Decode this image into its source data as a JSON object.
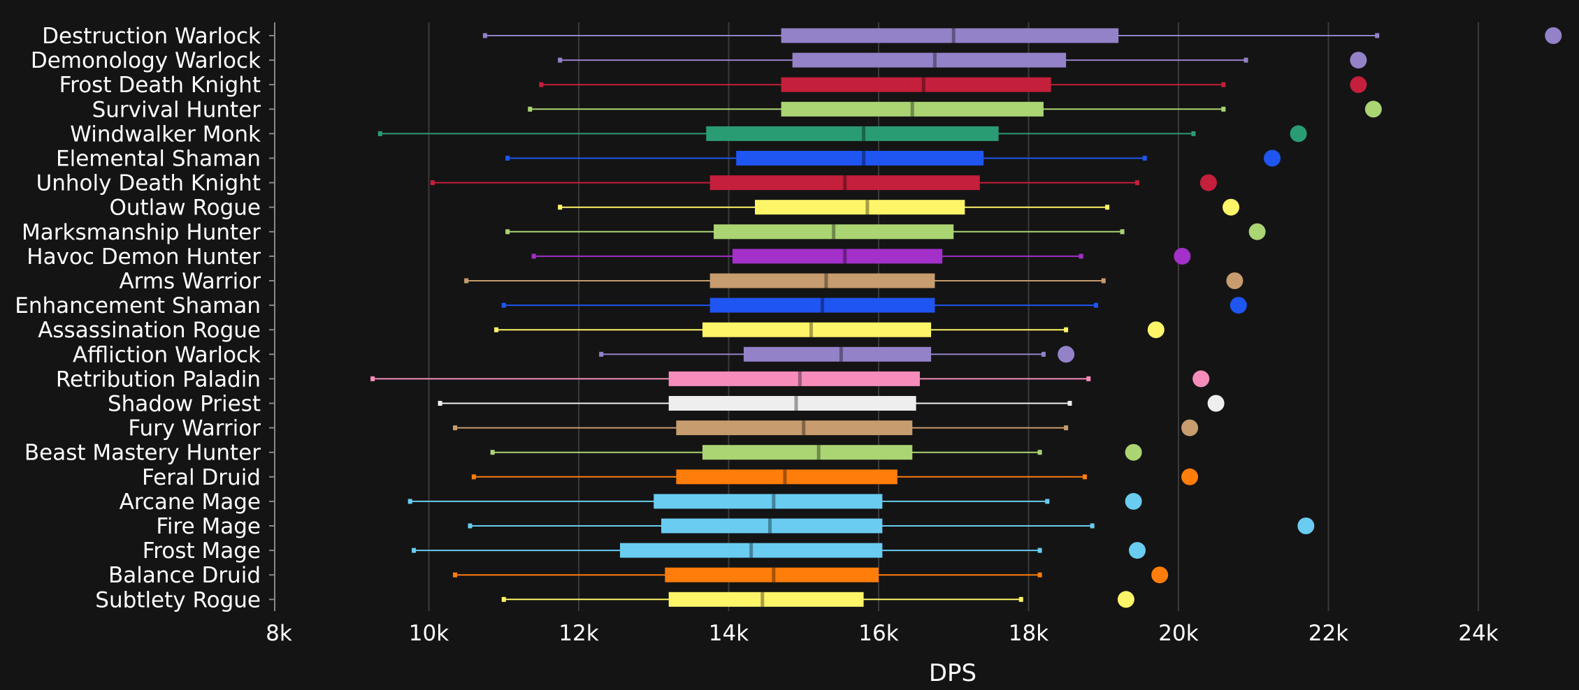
{
  "chart_data": {
    "type": "box",
    "title": "",
    "xlabel": "DPS",
    "xlim": [
      8000,
      25000
    ],
    "x_ticks": [
      8000,
      10000,
      12000,
      14000,
      16000,
      18000,
      20000,
      22000,
      24000
    ],
    "x_tick_labels": [
      "8k",
      "10k",
      "12k",
      "14k",
      "16k",
      "18k",
      "20k",
      "22k",
      "24k"
    ],
    "grid": "vertical",
    "categories": [
      "Destruction Warlock",
      "Demonology Warlock",
      "Frost Death Knight",
      "Survival Hunter",
      "Windwalker Monk",
      "Elemental Shaman",
      "Unholy Death Knight",
      "Outlaw Rogue",
      "Marksmanship Hunter",
      "Havoc Demon Hunter",
      "Arms Warrior",
      "Enhancement Shaman",
      "Assassination Rogue",
      "Affliction Warlock",
      "Retribution Paladin",
      "Shadow Priest",
      "Fury Warrior",
      "Beast Mastery Hunter",
      "Feral Druid",
      "Arcane Mage",
      "Fire Mage",
      "Frost Mage",
      "Balance Druid",
      "Subtlety Rogue"
    ],
    "series": [
      {
        "class": "Destruction Warlock",
        "color": "#9482c9",
        "min": 10750,
        "q1": 14700,
        "median": 17000,
        "q3": 19200,
        "max": 22650,
        "outlier": 25000
      },
      {
        "class": "Demonology Warlock",
        "color": "#9482c9",
        "min": 11750,
        "q1": 14850,
        "median": 16750,
        "q3": 18500,
        "max": 20900,
        "outlier": 22400
      },
      {
        "class": "Frost Death Knight",
        "color": "#c41f3b",
        "min": 11500,
        "q1": 14700,
        "median": 16600,
        "q3": 18300,
        "max": 20600,
        "outlier": 22400
      },
      {
        "class": "Survival Hunter",
        "color": "#abd473",
        "min": 11350,
        "q1": 14700,
        "median": 16450,
        "q3": 18200,
        "max": 20600,
        "outlier": 22600
      },
      {
        "class": "Windwalker Monk",
        "color": "#2a9c74",
        "min": 9350,
        "q1": 13700,
        "median": 15800,
        "q3": 17600,
        "max": 20200,
        "outlier": 21600
      },
      {
        "class": "Elemental Shaman",
        "color": "#1f55f0",
        "min": 11050,
        "q1": 14100,
        "median": 15800,
        "q3": 17400,
        "max": 19550,
        "outlier": 21250
      },
      {
        "class": "Unholy Death Knight",
        "color": "#c41f3b",
        "min": 10050,
        "q1": 13750,
        "median": 15550,
        "q3": 17350,
        "max": 19450,
        "outlier": 20400
      },
      {
        "class": "Outlaw Rogue",
        "color": "#fff569",
        "min": 11750,
        "q1": 14350,
        "median": 15850,
        "q3": 17150,
        "max": 19050,
        "outlier": 20700
      },
      {
        "class": "Marksmanship Hunter",
        "color": "#abd473",
        "min": 11050,
        "q1": 13800,
        "median": 15400,
        "q3": 17000,
        "max": 19250,
        "outlier": 21050
      },
      {
        "class": "Havoc Demon Hunter",
        "color": "#a330c9",
        "min": 11400,
        "q1": 14050,
        "median": 15550,
        "q3": 16850,
        "max": 18700,
        "outlier": 20050
      },
      {
        "class": "Arms Warrior",
        "color": "#c79c6e",
        "min": 10500,
        "q1": 13750,
        "median": 15300,
        "q3": 16750,
        "max": 19000,
        "outlier": 20750
      },
      {
        "class": "Enhancement Shaman",
        "color": "#1f55f0",
        "min": 11000,
        "q1": 13750,
        "median": 15250,
        "q3": 16750,
        "max": 18900,
        "outlier": 20800
      },
      {
        "class": "Assassination Rogue",
        "color": "#fff569",
        "min": 10900,
        "q1": 13650,
        "median": 15100,
        "q3": 16700,
        "max": 18500,
        "outlier": 19700
      },
      {
        "class": "Affliction Warlock",
        "color": "#9482c9",
        "min": 12300,
        "q1": 14200,
        "median": 15500,
        "q3": 16700,
        "max": 18200,
        "outlier": 18500
      },
      {
        "class": "Retribution Paladin",
        "color": "#f58cba",
        "min": 9250,
        "q1": 13200,
        "median": 14950,
        "q3": 16550,
        "max": 18800,
        "outlier": 20300
      },
      {
        "class": "Shadow Priest",
        "color": "#eeeeee",
        "min": 10150,
        "q1": 13200,
        "median": 14900,
        "q3": 16500,
        "max": 18550,
        "outlier": 20500
      },
      {
        "class": "Fury Warrior",
        "color": "#c79c6e",
        "min": 10350,
        "q1": 13300,
        "median": 15000,
        "q3": 16450,
        "max": 18500,
        "outlier": 20150
      },
      {
        "class": "Beast Mastery Hunter",
        "color": "#abd473",
        "min": 10850,
        "q1": 13650,
        "median": 15200,
        "q3": 16450,
        "max": 18150,
        "outlier": 19400
      },
      {
        "class": "Feral Druid",
        "color": "#ff7d0a",
        "min": 10600,
        "q1": 13300,
        "median": 14750,
        "q3": 16250,
        "max": 18750,
        "outlier": 20150
      },
      {
        "class": "Arcane Mage",
        "color": "#69ccf0",
        "min": 9750,
        "q1": 13000,
        "median": 14600,
        "q3": 16050,
        "max": 18250,
        "outlier": 19400
      },
      {
        "class": "Fire Mage",
        "color": "#69ccf0",
        "min": 10550,
        "q1": 13100,
        "median": 14550,
        "q3": 16050,
        "max": 18850,
        "outlier": 21700
      },
      {
        "class": "Frost Mage",
        "color": "#69ccf0",
        "min": 9800,
        "q1": 12550,
        "median": 14300,
        "q3": 16050,
        "max": 18150,
        "outlier": 19450
      },
      {
        "class": "Balance Druid",
        "color": "#ff7d0a",
        "min": 10350,
        "q1": 13150,
        "median": 14600,
        "q3": 16000,
        "max": 18150,
        "outlier": 19750
      },
      {
        "class": "Subtlety Rogue",
        "color": "#fff569",
        "min": 11000,
        "q1": 13200,
        "median": 14450,
        "q3": 15800,
        "max": 17900,
        "outlier": 19300
      }
    ]
  },
  "colors": {
    "background": "#141414",
    "grid": "#3a3a3a",
    "axis": "#888888",
    "text": "#ffffff"
  }
}
